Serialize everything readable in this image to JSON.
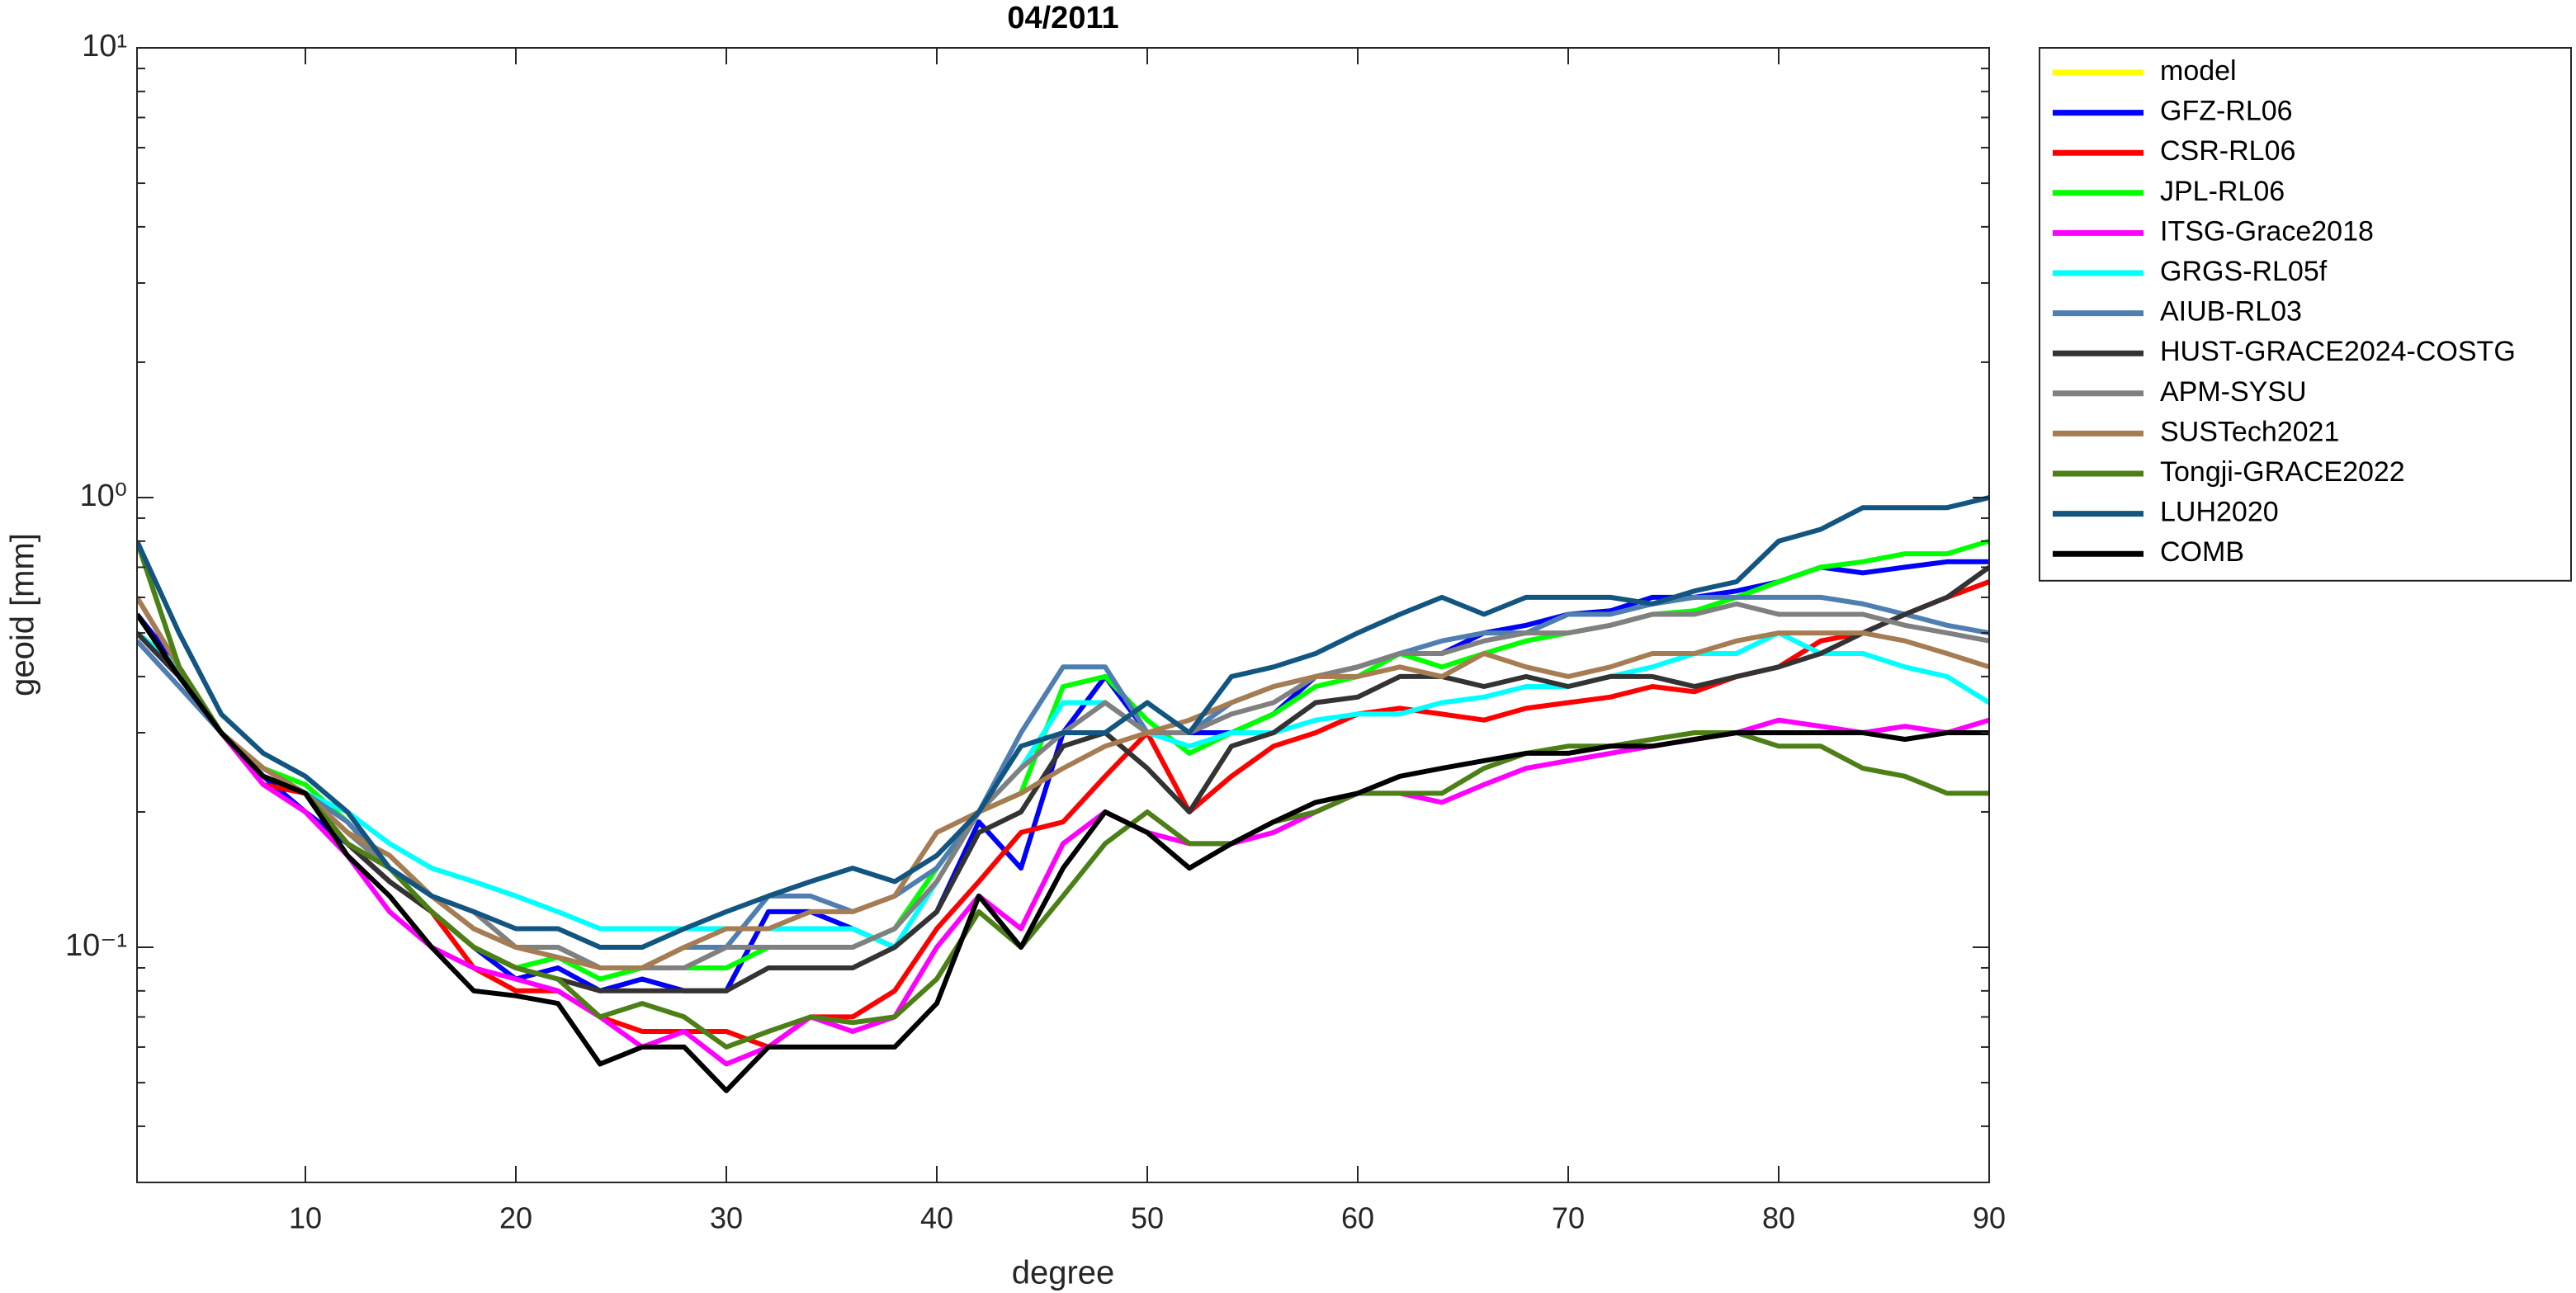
{
  "chart_data": {
    "type": "line",
    "title": "04/2011",
    "xlabel": "degree",
    "ylabel": "geoid [mm]",
    "yscale": "log",
    "grid": false,
    "xlim": [
      2,
      90
    ],
    "xticks": [
      10,
      20,
      30,
      40,
      50,
      60,
      70,
      80,
      90
    ],
    "ylim": [
      0.03,
      10
    ],
    "yticks": [
      {
        "value": 0.1,
        "label": "10⁻¹"
      },
      {
        "value": 1,
        "label": "10⁰"
      },
      {
        "value": 10,
        "label": "10¹"
      }
    ],
    "yminor_ticks": [
      0.04,
      0.05,
      0.06,
      0.07,
      0.08,
      0.09,
      0.2,
      0.3,
      0.4,
      0.5,
      0.6,
      0.7,
      0.8,
      0.9,
      2,
      3,
      4,
      5,
      6,
      7,
      8,
      9
    ],
    "x": [
      2,
      4,
      6,
      8,
      10,
      12,
      14,
      16,
      18,
      20,
      22,
      24,
      26,
      28,
      30,
      32,
      34,
      36,
      38,
      40,
      42,
      44,
      46,
      48,
      50,
      52,
      54,
      56,
      58,
      60,
      62,
      64,
      66,
      68,
      70,
      72,
      74,
      76,
      78,
      80,
      82,
      84,
      86,
      88,
      90
    ],
    "series": [
      {
        "name": "model",
        "color": "#ffff00",
        "values": [
          0.55,
          0.42,
          0.3,
          0.24,
          0.2,
          0.17,
          0.14,
          0.12,
          0.1,
          0.085,
          0.09,
          0.08,
          0.085,
          0.08,
          0.08,
          0.12,
          0.12,
          0.11,
          0.1,
          0.12,
          0.19,
          0.15,
          0.3,
          0.4,
          0.3,
          0.3,
          0.3,
          0.33,
          0.4,
          0.42,
          0.45,
          0.45,
          0.5,
          0.52,
          0.55,
          0.56,
          0.6,
          0.6,
          0.62,
          0.65,
          0.7,
          0.68,
          0.7,
          0.72,
          0.72
        ]
      },
      {
        "name": "GFZ-RL06",
        "color": "#0000ff",
        "values": [
          0.55,
          0.42,
          0.3,
          0.24,
          0.2,
          0.17,
          0.14,
          0.12,
          0.1,
          0.085,
          0.09,
          0.08,
          0.085,
          0.08,
          0.08,
          0.12,
          0.12,
          0.11,
          0.1,
          0.12,
          0.19,
          0.15,
          0.3,
          0.4,
          0.3,
          0.3,
          0.3,
          0.33,
          0.4,
          0.42,
          0.45,
          0.45,
          0.5,
          0.52,
          0.55,
          0.56,
          0.6,
          0.6,
          0.62,
          0.65,
          0.7,
          0.68,
          0.7,
          0.72,
          0.72
        ]
      },
      {
        "name": "CSR-RL06",
        "color": "#ff0000",
        "values": [
          0.5,
          0.42,
          0.3,
          0.23,
          0.22,
          0.17,
          0.14,
          0.12,
          0.09,
          0.08,
          0.08,
          0.07,
          0.065,
          0.065,
          0.065,
          0.06,
          0.07,
          0.07,
          0.08,
          0.11,
          0.14,
          0.18,
          0.19,
          0.24,
          0.3,
          0.2,
          0.24,
          0.28,
          0.3,
          0.33,
          0.34,
          0.33,
          0.32,
          0.34,
          0.35,
          0.36,
          0.38,
          0.37,
          0.4,
          0.42,
          0.48,
          0.5,
          0.55,
          0.6,
          0.65
        ]
      },
      {
        "name": "JPL-RL06",
        "color": "#00ff00",
        "values": [
          0.8,
          0.42,
          0.3,
          0.25,
          0.23,
          0.19,
          0.15,
          0.12,
          0.1,
          0.09,
          0.095,
          0.085,
          0.09,
          0.09,
          0.09,
          0.1,
          0.1,
          0.1,
          0.11,
          0.15,
          0.2,
          0.22,
          0.38,
          0.4,
          0.32,
          0.27,
          0.3,
          0.33,
          0.38,
          0.4,
          0.45,
          0.42,
          0.45,
          0.48,
          0.5,
          0.52,
          0.55,
          0.56,
          0.6,
          0.65,
          0.7,
          0.72,
          0.75,
          0.75,
          0.8
        ]
      },
      {
        "name": "ITSG-Grace2018",
        "color": "#ff00ff",
        "values": [
          0.5,
          0.4,
          0.3,
          0.23,
          0.2,
          0.16,
          0.12,
          0.1,
          0.09,
          0.085,
          0.08,
          0.07,
          0.06,
          0.065,
          0.055,
          0.06,
          0.07,
          0.065,
          0.07,
          0.1,
          0.13,
          0.11,
          0.17,
          0.2,
          0.18,
          0.17,
          0.17,
          0.18,
          0.2,
          0.22,
          0.22,
          0.21,
          0.23,
          0.25,
          0.26,
          0.27,
          0.28,
          0.29,
          0.3,
          0.32,
          0.31,
          0.3,
          0.31,
          0.3,
          0.32
        ]
      },
      {
        "name": "GRGS-RL05f",
        "color": "#00ffff",
        "values": [
          0.5,
          0.42,
          0.3,
          0.25,
          0.22,
          0.2,
          0.17,
          0.15,
          0.14,
          0.13,
          0.12,
          0.11,
          0.11,
          0.11,
          0.11,
          0.11,
          0.11,
          0.11,
          0.1,
          0.14,
          0.2,
          0.25,
          0.35,
          0.35,
          0.3,
          0.28,
          0.3,
          0.3,
          0.32,
          0.33,
          0.33,
          0.35,
          0.36,
          0.38,
          0.38,
          0.4,
          0.42,
          0.45,
          0.45,
          0.5,
          0.45,
          0.45,
          0.42,
          0.4,
          0.35
        ]
      },
      {
        "name": "AIUB-RL03",
        "color": "#4f7fb0",
        "values": [
          0.48,
          0.38,
          0.3,
          0.25,
          0.22,
          0.19,
          0.15,
          0.13,
          0.11,
          0.1,
          0.1,
          0.09,
          0.09,
          0.1,
          0.1,
          0.13,
          0.13,
          0.12,
          0.13,
          0.15,
          0.2,
          0.3,
          0.42,
          0.42,
          0.3,
          0.3,
          0.35,
          0.38,
          0.4,
          0.42,
          0.45,
          0.48,
          0.5,
          0.5,
          0.55,
          0.55,
          0.58,
          0.6,
          0.6,
          0.6,
          0.6,
          0.58,
          0.55,
          0.52,
          0.5
        ]
      },
      {
        "name": "HUST-GRACE2024-COSTG",
        "color": "#333333",
        "values": [
          0.5,
          0.4,
          0.3,
          0.24,
          0.22,
          0.17,
          0.14,
          0.12,
          0.1,
          0.09,
          0.085,
          0.08,
          0.08,
          0.08,
          0.08,
          0.09,
          0.09,
          0.09,
          0.1,
          0.12,
          0.18,
          0.2,
          0.28,
          0.3,
          0.25,
          0.2,
          0.28,
          0.3,
          0.35,
          0.36,
          0.4,
          0.4,
          0.38,
          0.4,
          0.38,
          0.4,
          0.4,
          0.38,
          0.4,
          0.42,
          0.45,
          0.5,
          0.55,
          0.6,
          0.7
        ]
      },
      {
        "name": "APM-SYSU",
        "color": "#808080",
        "values": [
          0.6,
          0.42,
          0.3,
          0.25,
          0.22,
          0.18,
          0.15,
          0.13,
          0.12,
          0.1,
          0.1,
          0.09,
          0.09,
          0.09,
          0.1,
          0.1,
          0.1,
          0.1,
          0.11,
          0.14,
          0.2,
          0.25,
          0.3,
          0.35,
          0.3,
          0.3,
          0.33,
          0.35,
          0.4,
          0.42,
          0.45,
          0.45,
          0.48,
          0.5,
          0.5,
          0.52,
          0.55,
          0.55,
          0.58,
          0.55,
          0.55,
          0.55,
          0.52,
          0.5,
          0.48
        ]
      },
      {
        "name": "SUSTech2021",
        "color": "#a67c52",
        "values": [
          0.6,
          0.42,
          0.3,
          0.25,
          0.22,
          0.18,
          0.16,
          0.13,
          0.11,
          0.1,
          0.095,
          0.09,
          0.09,
          0.1,
          0.11,
          0.11,
          0.12,
          0.12,
          0.13,
          0.18,
          0.2,
          0.22,
          0.25,
          0.28,
          0.3,
          0.32,
          0.35,
          0.38,
          0.4,
          0.4,
          0.42,
          0.4,
          0.45,
          0.42,
          0.4,
          0.42,
          0.45,
          0.45,
          0.48,
          0.5,
          0.5,
          0.5,
          0.48,
          0.45,
          0.42
        ]
      },
      {
        "name": "Tongji-GRACE2022",
        "color": "#4d7f17",
        "values": [
          0.8,
          0.42,
          0.3,
          0.24,
          0.22,
          0.17,
          0.15,
          0.12,
          0.1,
          0.09,
          0.085,
          0.07,
          0.075,
          0.07,
          0.06,
          0.065,
          0.07,
          0.068,
          0.07,
          0.085,
          0.12,
          0.1,
          0.13,
          0.17,
          0.2,
          0.17,
          0.17,
          0.19,
          0.2,
          0.22,
          0.22,
          0.22,
          0.25,
          0.27,
          0.28,
          0.28,
          0.29,
          0.3,
          0.3,
          0.28,
          0.28,
          0.25,
          0.24,
          0.22,
          0.22
        ]
      },
      {
        "name": "LUH2020",
        "color": "#125581",
        "values": [
          0.8,
          0.5,
          0.33,
          0.27,
          0.24,
          0.2,
          0.15,
          0.13,
          0.12,
          0.11,
          0.11,
          0.1,
          0.1,
          0.11,
          0.12,
          0.13,
          0.14,
          0.15,
          0.14,
          0.16,
          0.2,
          0.28,
          0.3,
          0.3,
          0.35,
          0.3,
          0.4,
          0.42,
          0.45,
          0.5,
          0.55,
          0.6,
          0.55,
          0.6,
          0.6,
          0.6,
          0.58,
          0.62,
          0.65,
          0.8,
          0.85,
          0.95,
          0.95,
          0.95,
          1.0
        ]
      },
      {
        "name": "COMB",
        "color": "#000000",
        "values": [
          0.55,
          0.4,
          0.3,
          0.24,
          0.22,
          0.16,
          0.13,
          0.1,
          0.08,
          0.078,
          0.075,
          0.055,
          0.06,
          0.06,
          0.048,
          0.06,
          0.06,
          0.06,
          0.06,
          0.075,
          0.13,
          0.1,
          0.15,
          0.2,
          0.18,
          0.15,
          0.17,
          0.19,
          0.21,
          0.22,
          0.24,
          0.25,
          0.26,
          0.27,
          0.27,
          0.28,
          0.28,
          0.29,
          0.3,
          0.3,
          0.3,
          0.3,
          0.29,
          0.3,
          0.3
        ]
      }
    ]
  }
}
